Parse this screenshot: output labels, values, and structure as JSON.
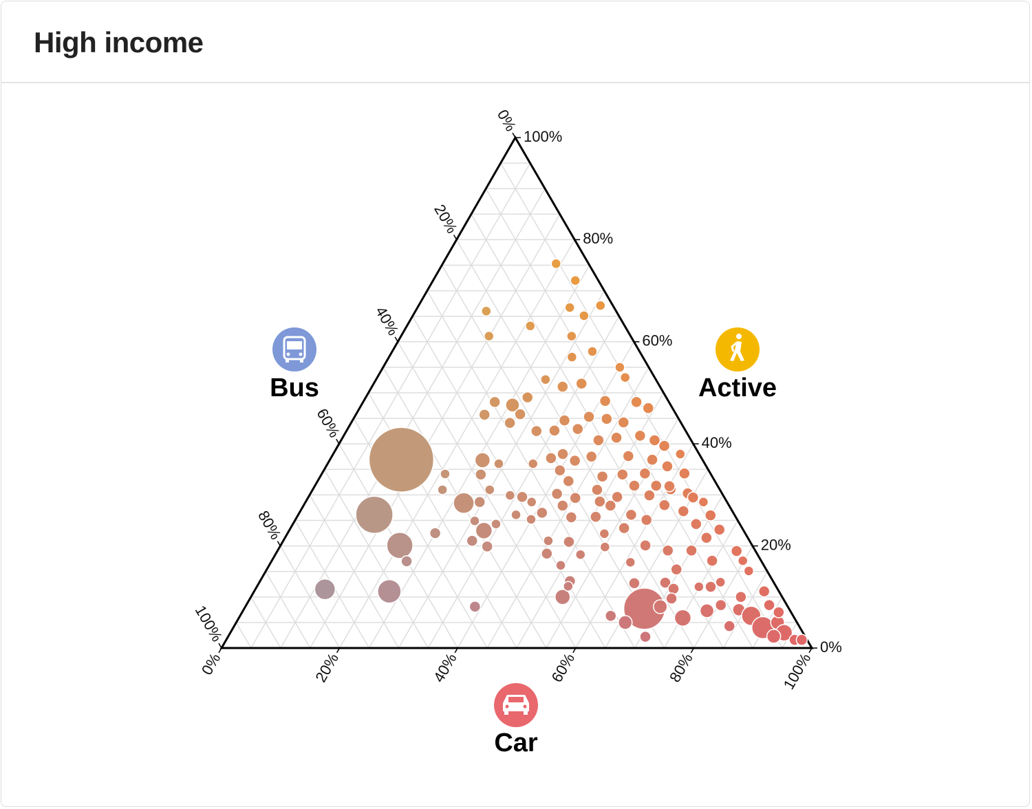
{
  "chart_data": {
    "type": "ternary",
    "title": "High income",
    "axes": {
      "active": {
        "label": "Active",
        "color": "#f5b800",
        "ticks": [
          {
            "value": 0,
            "label": "0%"
          },
          {
            "value": 20,
            "label": "20%"
          },
          {
            "value": 40,
            "label": "40%"
          },
          {
            "value": 60,
            "label": "60%"
          },
          {
            "value": 80,
            "label": "80%"
          },
          {
            "value": 100,
            "label": "100%"
          }
        ]
      },
      "bus": {
        "label": "Bus",
        "color": "#7e98d8",
        "ticks": [
          {
            "value": 0,
            "label": "0%"
          },
          {
            "value": 20,
            "label": "20%"
          },
          {
            "value": 40,
            "label": "40%"
          },
          {
            "value": 60,
            "label": "60%"
          },
          {
            "value": 80,
            "label": "80%"
          },
          {
            "value": 100,
            "label": "100%"
          }
        ]
      },
      "car": {
        "label": "Car",
        "color": "#e8686e",
        "ticks": [
          {
            "value": 0,
            "label": "0%"
          },
          {
            "value": 20,
            "label": "20%"
          },
          {
            "value": 40,
            "label": "40%"
          },
          {
            "value": 60,
            "label": "60%"
          },
          {
            "value": 80,
            "label": "80%"
          },
          {
            "value": 100,
            "label": "100%"
          }
        ]
      }
    },
    "gridlines": [
      5,
      10,
      15,
      20,
      25,
      30,
      35,
      40,
      45,
      50,
      55,
      60,
      65,
      70,
      75,
      80,
      85,
      90,
      95
    ],
    "grid": true,
    "point_colors": {
      "active": "#f0ad30",
      "bus": "#9a98b3",
      "car": "#e06666"
    },
    "points": {
      "active": [
        36.9,
        26.1,
        20.1,
        17.0,
        11.5,
        11.1,
        8.1,
        7.7,
        75.3,
        72.0,
        66.0,
        66.7,
        65.1,
        67.1,
        63.1,
        61.1,
        61.1,
        58.1,
        57.0,
        55.0,
        53.0,
        52.6,
        51.2,
        51.8,
        49.1,
        48.2,
        47.6,
        45.7,
        45.8,
        44.1,
        48.4,
        48.2,
        47.0,
        45.3,
        44.9,
        44.2,
        44.6,
        42.5,
        42.6,
        42.9,
        40.7,
        41.2,
        41.6,
        40.7,
        39.6,
        38.0,
        38.0,
        37.2,
        37.5,
        37.6,
        36.9,
        35.6,
        36.8,
        34.0,
        36.1,
        34.1,
        36.1,
        34.8,
        36.7,
        33.6,
        34.0,
        34.2,
        34.2,
        32.7,
        31.0,
        31.8,
        31.8,
        31.1,
        30.3,
        31.0,
        28.4,
        31.0,
        29.9,
        29.6,
        28.6,
        28.6,
        30.2,
        29.4,
        28.7,
        29.6,
        29.9,
        31.7,
        29.5,
        28.6,
        27.9,
        26.5,
        26.1,
        24.3,
        24.9,
        23.0,
        22.5,
        21.0,
        19.9,
        25.2,
        25.6,
        25.7,
        27.9,
        26.1,
        25.1,
        28.0,
        26.8,
        26.0,
        24.3,
        23.2,
        23.5,
        22.4,
        21.0,
        20.8,
        19.8,
        18.3,
        18.5,
        16.2,
        20.1,
        19.1,
        19.1,
        21.6,
        19.0,
        17.1,
        17.1,
        15.1,
        15.4,
        16.8,
        13.1,
        10.0,
        12.7,
        12.8,
        11.6,
        12.0,
        12.9,
        12.0,
        10.0,
        11.1,
        8.4,
        7.3,
        7.5,
        6.3,
        4.3,
        4.0,
        5.0,
        3.0,
        1.6,
        2.3,
        8.4,
        7.0,
        5.9,
        8.1,
        5.0,
        6.3,
        2.2,
        9.7,
        12.1,
        1.6
      ],
      "car": [
        12.1,
        12.9,
        20.2,
        22.9,
        11.8,
        22.9,
        38.9,
        67.8,
        19.2,
        24.1,
        12.0,
        25.8,
        29.0,
        30.8,
        20.9,
        14.9,
        28.9,
        33.9,
        31.0,
        40.1,
        42.0,
        28.7,
        32.3,
        35.2,
        27.4,
        22.3,
        25.6,
        21.8,
        27.8,
        26.9,
        40.9,
        46.3,
        48.9,
        39.7,
        42.9,
        46.1,
        35.9,
        32.2,
        35.2,
        39.0,
        43.6,
        46.4,
        50.2,
        53.1,
        55.3,
        58.8,
        38.9,
        37.3,
        44.0,
        50.2,
        54.6,
        57.8,
        25.9,
        27.0,
        29.0,
        20.9,
        34.8,
        40.0,
        41.6,
        47.8,
        51.0,
        54.7,
        61.4,
        42.5,
        48.2,
        54.1,
        57.8,
        60.6,
        63.9,
        22.0,
        26.9,
        30.0,
        34.0,
        36.2,
        29.5,
        38.3,
        41.8,
        45.3,
        49.8,
        52.3,
        57.6,
        60.1,
        65.2,
        67.4,
        43.9,
        41.1,
        36.9,
        34.4,
        30.5,
        33.0,
        25.0,
        32.0,
        35.1,
        39.9,
        46.5,
        50.6,
        52.0,
        56.4,
        59.5,
        61.1,
        64.9,
        69.9,
        68.3,
        72.8,
        56.5,
        53.7,
        44.9,
        48.5,
        55.1,
        51.7,
        45.9,
        49.4,
        61.8,
        66.1,
        70.1,
        71.4,
        77.8,
        74.6,
        79.8,
        81.8,
        69.4,
        60.9,
        52.5,
        52.8,
        63.6,
        68.8,
        70.8,
        74.9,
        78.1,
        76.9,
        83.0,
        86.4,
        80.4,
        78.6,
        83.9,
        86.6,
        83.9,
        89.7,
        91.7,
        93.8,
        96.3,
        92.4,
        88.6,
        90.9,
        75.2,
        70.3,
        65.9,
        62.8,
        70.7,
        71.4,
        52.7,
        97.5
      ],
      "size": [
        47,
        27,
        19,
        8,
        15,
        17,
        8,
        30,
        7,
        7,
        7,
        7,
        7,
        7,
        7,
        7,
        7,
        7,
        7,
        7,
        7,
        7,
        8,
        8,
        8,
        8,
        10,
        8,
        8,
        8,
        8,
        8,
        8,
        8,
        8,
        8,
        8,
        8,
        8,
        8,
        8,
        8,
        8,
        8,
        8,
        7,
        8,
        8,
        8,
        8,
        8,
        8,
        11,
        8,
        7,
        7,
        7,
        8,
        8,
        8,
        8,
        8,
        8,
        8,
        8,
        8,
        8,
        8,
        8,
        7,
        15,
        7,
        7,
        8,
        8,
        7,
        8,
        8,
        8,
        8,
        8,
        8,
        8,
        7,
        8,
        8,
        7,
        7,
        7,
        12,
        8,
        8,
        8,
        7,
        8,
        8,
        8,
        8,
        8,
        8,
        8,
        8,
        8,
        8,
        8,
        7,
        7,
        8,
        7,
        7,
        8,
        7,
        8,
        8,
        8,
        8,
        8,
        8,
        7,
        7,
        8,
        7,
        8,
        11,
        8,
        8,
        8,
        7,
        7,
        8,
        8,
        8,
        8,
        10,
        9,
        14,
        8,
        16,
        10,
        12,
        8,
        10,
        8,
        8,
        12,
        10,
        10,
        8,
        8,
        8,
        7,
        8
      ]
    }
  }
}
